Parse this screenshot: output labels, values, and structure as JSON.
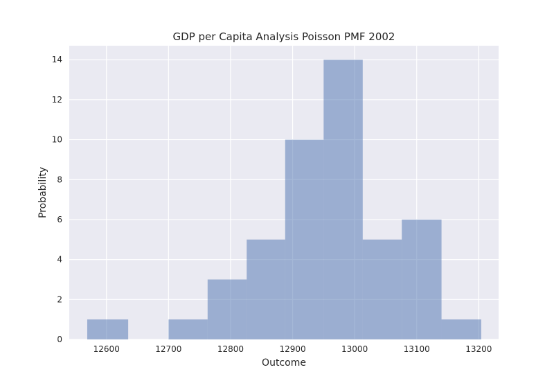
{
  "chart_data": {
    "type": "bar",
    "title": "GDP per Capita Analysis Poisson PMF 2002",
    "xlabel": "Outcome",
    "ylabel": "Probability",
    "bins": [
      {
        "start": 12569,
        "end": 12635,
        "value": 1
      },
      {
        "start": 12635,
        "end": 12700,
        "value": 0
      },
      {
        "start": 12700,
        "end": 12763,
        "value": 1
      },
      {
        "start": 12763,
        "end": 12826,
        "value": 3
      },
      {
        "start": 12826,
        "end": 12888,
        "value": 5
      },
      {
        "start": 12888,
        "end": 12950,
        "value": 10
      },
      {
        "start": 12950,
        "end": 13013,
        "value": 14
      },
      {
        "start": 13013,
        "end": 13076,
        "value": 5
      },
      {
        "start": 13076,
        "end": 13140,
        "value": 6
      },
      {
        "start": 13140,
        "end": 13204,
        "value": 1
      }
    ],
    "xlim": [
      12540,
      13232
    ],
    "ylim": [
      0,
      14.7
    ],
    "xticks": [
      12600,
      12700,
      12800,
      12900,
      13000,
      13100,
      13200
    ],
    "yticks": [
      0,
      2,
      4,
      6,
      8,
      10,
      12,
      14
    ],
    "grid": true,
    "colors": {
      "bar": "#4c72b0",
      "background": "#eaeaf2",
      "grid": "#ffffff",
      "text": "#262626"
    }
  }
}
